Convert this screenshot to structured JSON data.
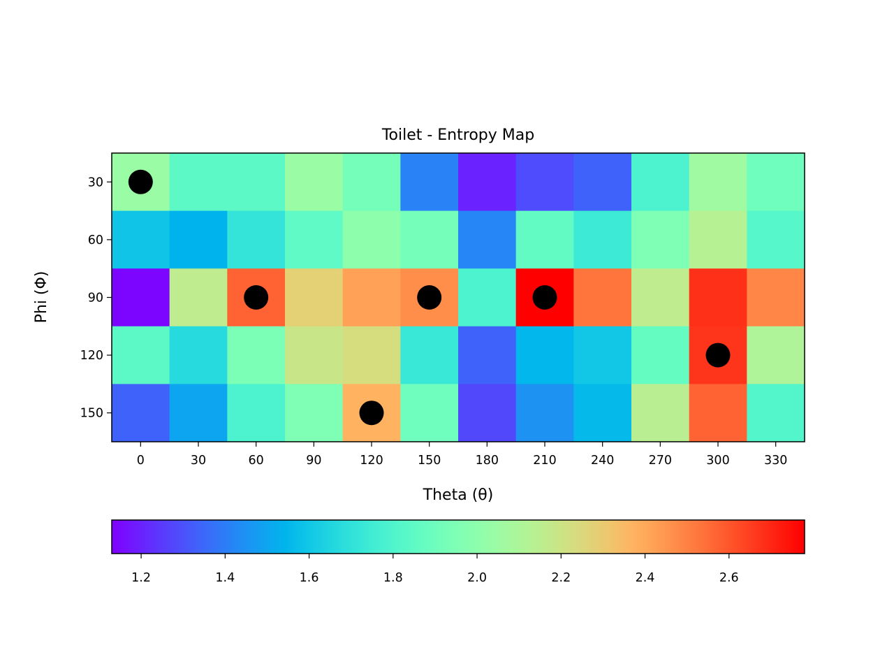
{
  "chart_data": {
    "type": "heatmap",
    "title": "Toilet - Entropy Map",
    "xlabel": "Theta (θ)",
    "ylabel": "Phi (Φ)",
    "x": [
      0,
      30,
      60,
      90,
      120,
      150,
      180,
      210,
      240,
      270,
      300,
      330
    ],
    "y": [
      30,
      60,
      90,
      120,
      150
    ],
    "values": [
      [
        2.04,
        1.84,
        1.84,
        2.04,
        1.92,
        1.41,
        1.2,
        1.29,
        1.34,
        1.79,
        2.06,
        1.9
      ],
      [
        1.59,
        1.54,
        1.71,
        1.85,
        2.0,
        1.92,
        1.42,
        1.86,
        1.74,
        1.95,
        2.13,
        1.82
      ],
      [
        1.14,
        2.16,
        2.57,
        2.28,
        2.42,
        2.47,
        1.79,
        2.78,
        2.53,
        2.16,
        2.68,
        2.49
      ],
      [
        1.84,
        1.67,
        1.94,
        2.19,
        2.23,
        1.73,
        1.34,
        1.55,
        1.6,
        1.87,
        2.67,
        2.11
      ],
      [
        1.34,
        1.5,
        1.79,
        1.95,
        2.37,
        1.9,
        1.28,
        1.45,
        1.56,
        2.14,
        2.57,
        1.81
      ]
    ],
    "markers": [
      {
        "theta": 0,
        "phi": 30
      },
      {
        "theta": 60,
        "phi": 90
      },
      {
        "theta": 150,
        "phi": 90
      },
      {
        "theta": 210,
        "phi": 90
      },
      {
        "theta": 300,
        "phi": 120
      },
      {
        "theta": 120,
        "phi": 150
      }
    ],
    "colormap": "rainbow",
    "colorbar": {
      "orientation": "horizontal",
      "range": [
        1.13,
        2.78
      ],
      "ticks": [
        "1.2",
        "1.4",
        "1.6",
        "1.8",
        "2.0",
        "2.2",
        "2.4",
        "2.6"
      ]
    },
    "colors": {
      "marker": "#000000",
      "frame": "#000000"
    }
  }
}
